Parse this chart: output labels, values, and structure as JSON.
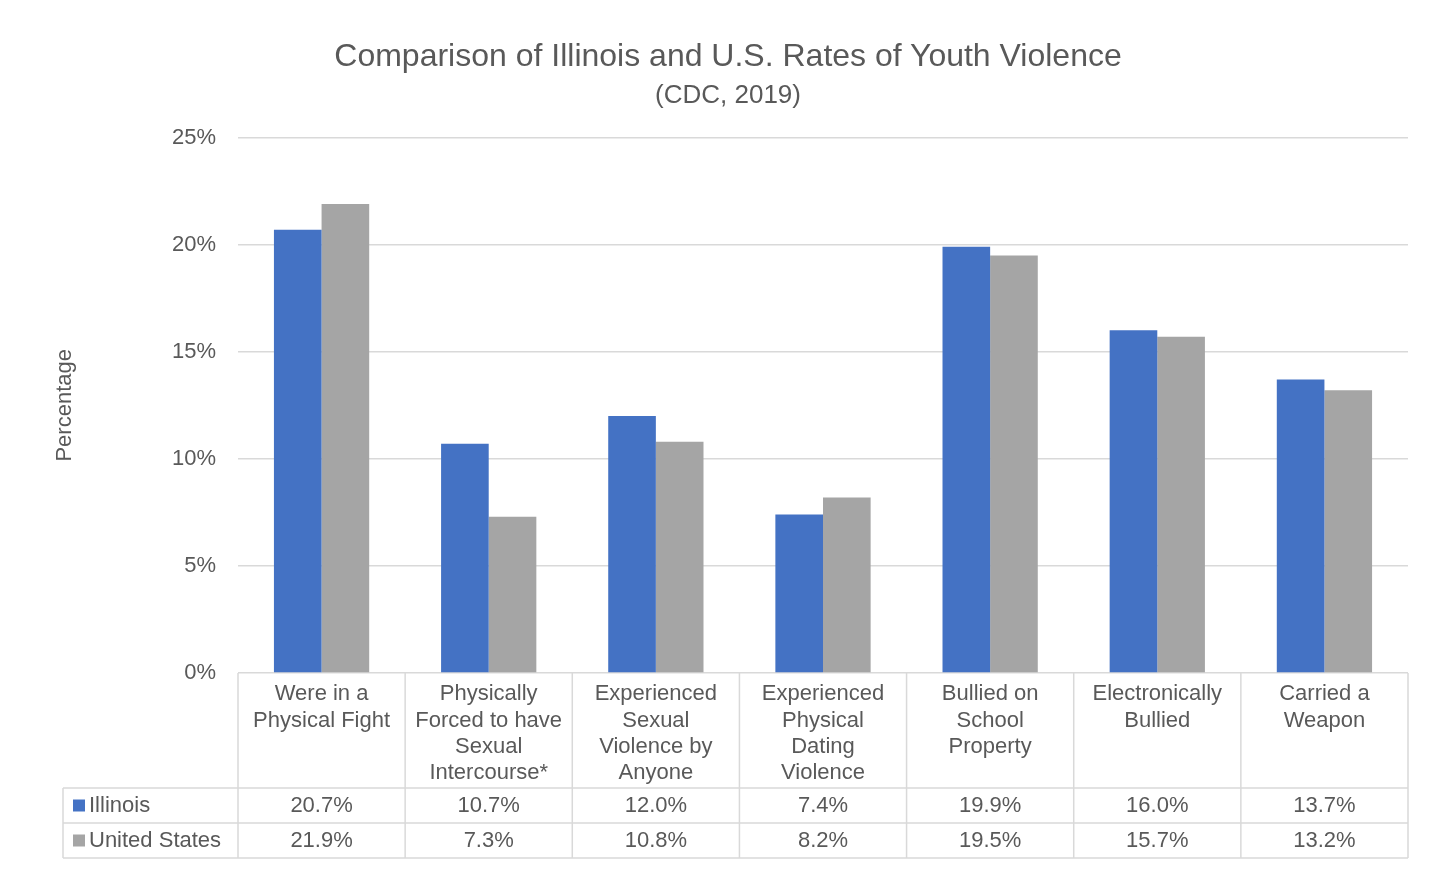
{
  "chart_data": {
    "type": "bar",
    "title": "Comparison of Illinois and U.S. Rates of Youth Violence",
    "subtitle": "(CDC, 2019)",
    "ylabel": "Percentage",
    "categories": [
      "Were in a Physical Fight",
      "Physically Forced to have Sexual Intercourse*",
      "Experienced Sexual Violence by Anyone",
      "Experienced Physical Dating Violence",
      "Bullied on School Property",
      "Electronically Bullied",
      "Carried a Weapon"
    ],
    "series": [
      {
        "name": "Illinois",
        "color": "#4472c4",
        "values": [
          20.7,
          10.7,
          12.0,
          7.4,
          19.9,
          16.0,
          13.7
        ],
        "value_labels": [
          "20.7%",
          "10.7%",
          "12.0%",
          "7.4%",
          "19.9%",
          "16.0%",
          "13.7%"
        ]
      },
      {
        "name": "United States",
        "color": "#a5a5a5",
        "values": [
          21.9,
          7.3,
          10.8,
          8.2,
          19.5,
          15.7,
          13.2
        ],
        "value_labels": [
          "21.9%",
          "7.3%",
          "10.8%",
          "8.2%",
          "19.5%",
          "15.7%",
          "13.2%"
        ]
      }
    ],
    "ylim": [
      0,
      25
    ],
    "yticks": [
      {
        "value": 0,
        "label": "0%"
      },
      {
        "value": 5,
        "label": "5%"
      },
      {
        "value": 10,
        "label": "10%"
      },
      {
        "value": 15,
        "label": "15%"
      },
      {
        "value": 20,
        "label": "20%"
      },
      {
        "value": 25,
        "label": "25%"
      }
    ],
    "grid": "y",
    "legend": "bottom"
  }
}
